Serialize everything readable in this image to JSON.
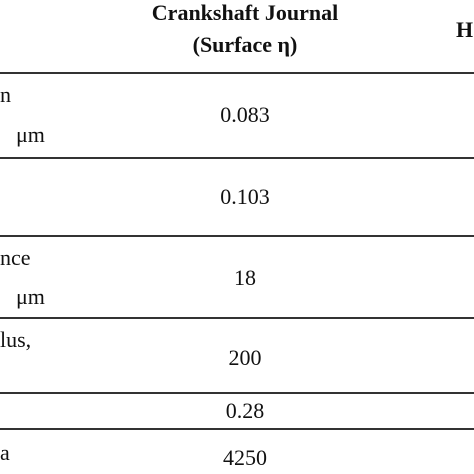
{
  "table": {
    "header": {
      "col1": [
        "Crankshaft Journal",
        "(Surface η)"
      ],
      "col2": "H"
    },
    "rows": [
      {
        "label": [
          "n",
          "μm"
        ],
        "value": "0.083"
      },
      {
        "label": [],
        "value": "0.103"
      },
      {
        "label": [
          "nce",
          "μm"
        ],
        "value": "18"
      },
      {
        "label": [
          "lus,"
        ],
        "value": "200"
      },
      {
        "label": [],
        "value": "0.28"
      },
      {
        "label": [
          "a"
        ],
        "value": "4250"
      }
    ]
  }
}
